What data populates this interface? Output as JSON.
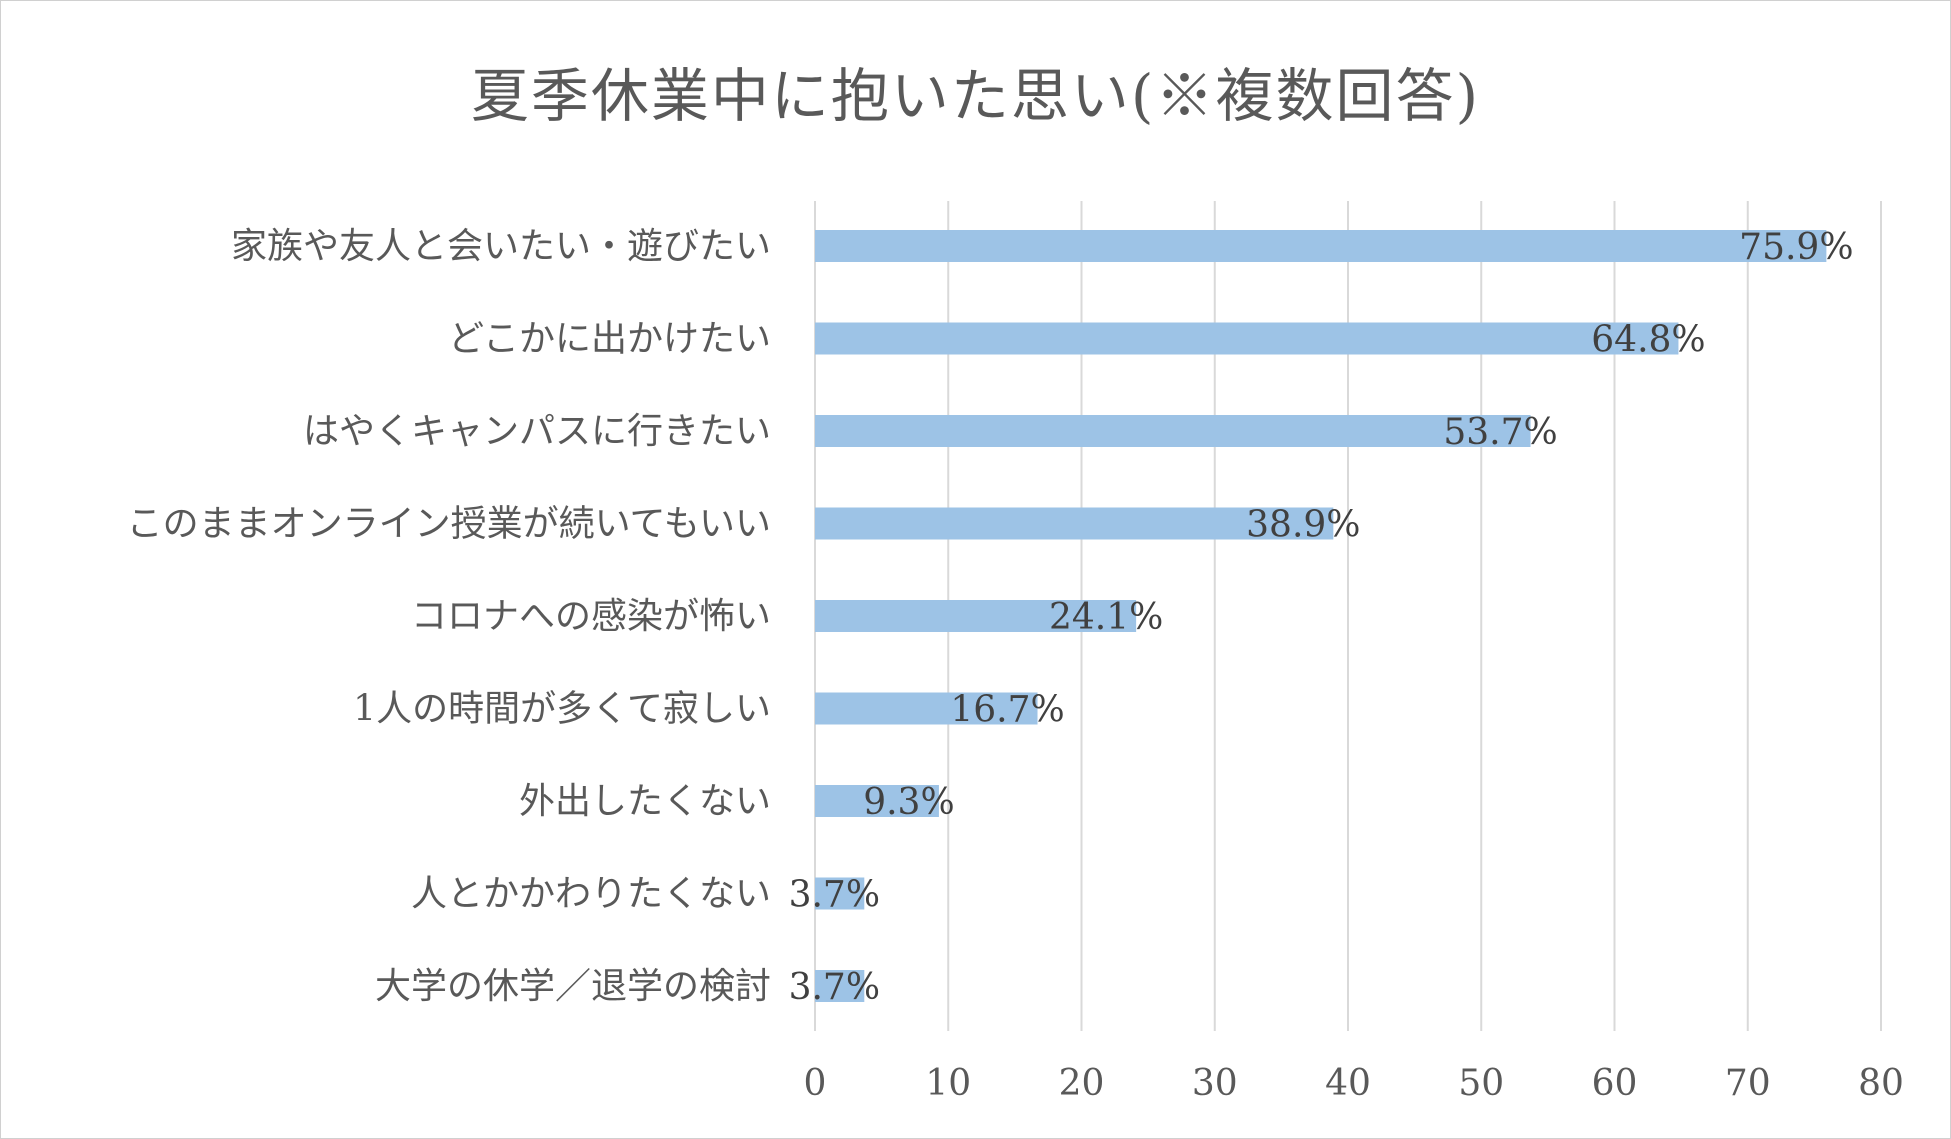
{
  "chart_data": {
    "type": "bar",
    "orientation": "horizontal",
    "title": "夏季休業中に抱いた思い(※複数回答)",
    "categories": [
      "家族や友人と会いたい・遊びたい",
      "どこかに出かけたい",
      "はやくキャンパスに行きたい",
      "このままオンライン授業が続いてもいい",
      "コロナへの感染が怖い",
      "1人の時間が多くて寂しい",
      "外出したくない",
      "人とかかわりたくない",
      "大学の休学／退学の検討"
    ],
    "values": [
      75.9,
      64.8,
      53.7,
      38.9,
      24.1,
      16.7,
      9.3,
      3.7,
      3.7
    ],
    "data_labels": [
      "75.9%",
      "64.8%",
      "53.7%",
      "38.9%",
      "24.1%",
      "16.7%",
      "9.3%",
      "3.7%",
      "3.7%"
    ],
    "xlim": [
      0,
      80
    ],
    "x_ticks": [
      "0",
      "10",
      "20",
      "30",
      "40",
      "50",
      "60",
      "70",
      "80"
    ],
    "grid": "vertical",
    "legend": "none",
    "bar_color": "#9dc3e6",
    "grid_color": "#d9d9d9",
    "text_color": "#595959"
  }
}
